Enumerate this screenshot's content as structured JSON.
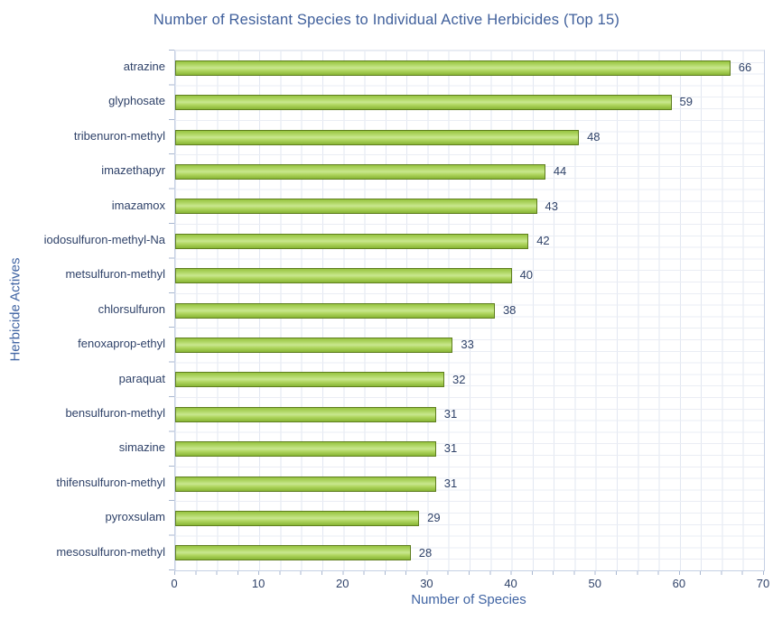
{
  "title": "Number of Resistant Species to Individual Active Herbicides (Top 15)",
  "chart_data": {
    "type": "bar",
    "orientation": "horizontal",
    "title": "Number of Resistant Species to Individual Active Herbicides (Top 15)",
    "xlabel": "Number of Species",
    "ylabel": "Herbicide Actives",
    "categories": [
      "atrazine",
      "glyphosate",
      "tribenuron-methyl",
      "imazethapyr",
      "imazamox",
      "iodosulfuron-methyl-Na",
      "metsulfuron-methyl",
      "chlorsulfuron",
      "fenoxaprop-ethyl",
      "paraquat",
      "bensulfuron-methyl",
      "simazine",
      "thifensulfuron-methyl",
      "pyroxsulam",
      "mesosulfuron-methyl"
    ],
    "values": [
      66,
      59,
      48,
      44,
      43,
      42,
      40,
      38,
      33,
      32,
      31,
      31,
      31,
      29,
      28
    ],
    "data_labels_shown": true,
    "xlim": [
      0,
      70
    ],
    "xticks": [
      0,
      10,
      20,
      30,
      40,
      50,
      60,
      70
    ],
    "grid": "minor grid on both axes, light blue-gray",
    "legend": "none"
  },
  "colors": {
    "bar_fill": "#9ACD44",
    "bar_border": "#5E7D1E",
    "title_text": "#3F5F9B",
    "axis_title_text": "#4064A3",
    "tick_label_text": "#2F4269",
    "gridline": "#E2E7F1",
    "axis_line": "#C5D0E4",
    "background": "#FFFFFF"
  }
}
